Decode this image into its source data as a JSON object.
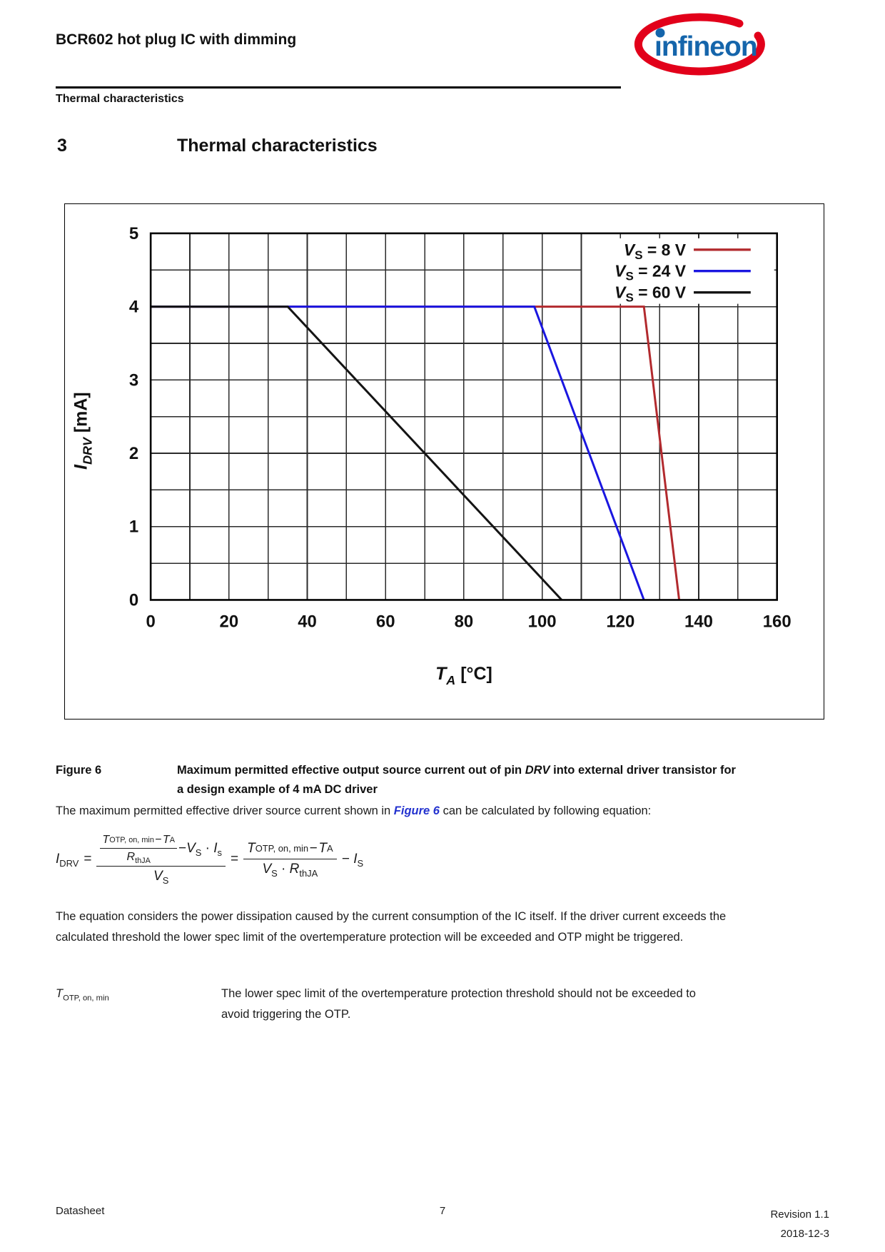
{
  "header": {
    "title": "BCR602 hot plug IC with dimming",
    "subtitle": "Thermal characteristics",
    "logo_text": "infineon"
  },
  "section": {
    "number": "3",
    "title": "Thermal characteristics"
  },
  "figure": {
    "label": "Figure 6",
    "caption_before": "Maximum permitted effective output source current out of pin ",
    "caption_italic": "DRV",
    "caption_after": " into external driver transistor for a design example of 4 mA DC driver"
  },
  "paragraphs": {
    "p1_before": "The maximum permitted effective driver source current shown in ",
    "p1_link": "Figure 6",
    "p1_after": " can be calculated by following equation:",
    "p2": "The equation considers the power dissipation caused by the current consumption of the IC itself. If the driver current exceeds the calculated threshold the lower spec limit of the overtemperature protection will be exceeded and OTP might be triggered."
  },
  "eq": {
    "I": "I",
    "DRV": "DRV",
    "eq": "=",
    "T": "T",
    "OTP": "OTP, on, min",
    "minus": "−",
    "TA": "A",
    "R": "R",
    "thJA": "thJA",
    "V": "V",
    "S": "S",
    "cdot": "·",
    "Ismall": "s",
    "IS": "S"
  },
  "term": {
    "base": "T",
    "sub": "OTP, on, min",
    "desc": "The lower spec limit of the overtemperature protection threshold should not be exceeded to avoid triggering the OTP."
  },
  "footer": {
    "left": "Datasheet",
    "page": "7",
    "revision": "Revision 1.1",
    "date": "2018-12-3"
  },
  "colors": {
    "logo_red": "#e2001a",
    "logo_blue": "#1565ab",
    "link_blue": "#2433cf",
    "grid": "#2b2b2b",
    "frame": "#000000"
  },
  "chart_data": {
    "type": "line",
    "title": "",
    "xlabel": {
      "base": "T",
      "sub": "A",
      "unit": " [°C]"
    },
    "ylabel": {
      "base": "I",
      "sub": "DRV",
      "unit": " [mA]"
    },
    "xlim": [
      0,
      160
    ],
    "ylim": [
      0,
      5
    ],
    "x_major_ticks": [
      0,
      20,
      40,
      60,
      80,
      100,
      120,
      140,
      160
    ],
    "y_major_ticks": [
      0,
      1,
      2,
      3,
      4,
      5
    ],
    "x_minor_step": 10,
    "y_minor_step": 0.5,
    "grid": true,
    "legend_position": "top-right",
    "series": [
      {
        "name": "VS = 8 V",
        "label": {
          "base": "V",
          "sub": "S",
          "rest": " = 8 V"
        },
        "color": "#b22a2e",
        "points": [
          [
            0,
            4
          ],
          [
            126,
            4
          ],
          [
            135,
            0
          ]
        ]
      },
      {
        "name": "VS = 24 V",
        "label": {
          "base": "V",
          "sub": "S",
          "rest": " = 24 V"
        },
        "color": "#1a16e0",
        "points": [
          [
            0,
            4
          ],
          [
            98,
            4
          ],
          [
            126,
            0
          ]
        ]
      },
      {
        "name": "VS = 60 V",
        "label": {
          "base": "V",
          "sub": "S",
          "rest": " = 60 V"
        },
        "color": "#141414",
        "points": [
          [
            0,
            4
          ],
          [
            35,
            4
          ],
          [
            105,
            0
          ]
        ]
      }
    ]
  }
}
